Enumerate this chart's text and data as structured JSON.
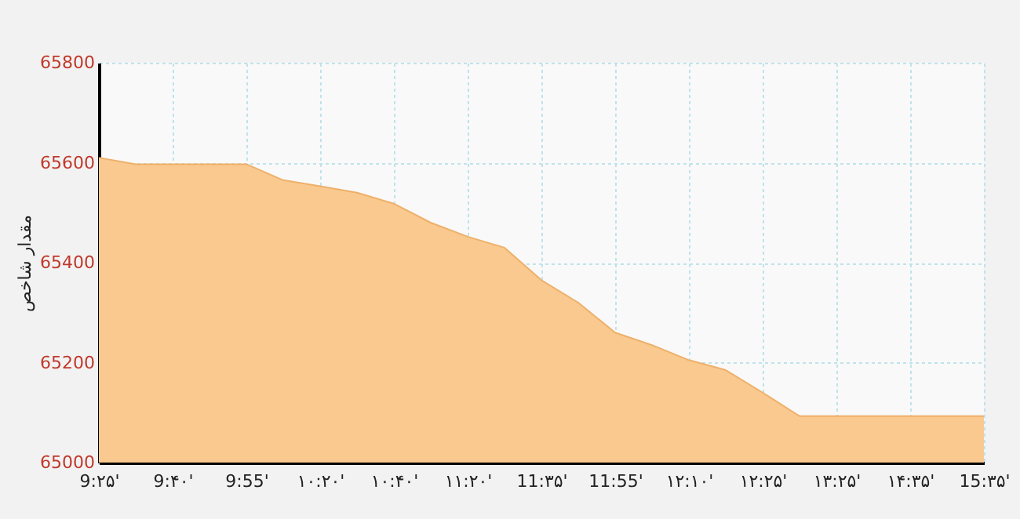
{
  "chart_data": {
    "type": "area",
    "ylabel": "مقدار شاخص",
    "categories": [
      "9:۲۵'",
      null,
      "9:۴۰'",
      null,
      "9:55'",
      null,
      "۱۰:۲۰'",
      null,
      "۱۰:۴۰'",
      null,
      "۱۱:۲۰'",
      null,
      "11:۳۵'",
      null,
      "11:55'",
      null,
      "۱۲:۱۰'",
      null,
      "۱۲:۲۵'",
      null,
      "۱۳:۲۵'",
      null,
      "۱۴:۳۵'",
      null,
      "15:۳۵'"
    ],
    "series": [
      {
        "color": "#f9c98f",
        "values": [
          65610,
          65597,
          65597,
          65597,
          65597,
          65565,
          65553,
          65540,
          65518,
          65480,
          65452,
          65430,
          65365,
          65320,
          65260,
          65235,
          65205,
          65185,
          65140,
          65093,
          65093,
          65093,
          65093,
          65093,
          65093
        ]
      }
    ],
    "ylim": [
      65000,
      65800
    ],
    "yticks": [
      65000,
      65200,
      65400,
      65600,
      65800
    ],
    "grid": true
  }
}
